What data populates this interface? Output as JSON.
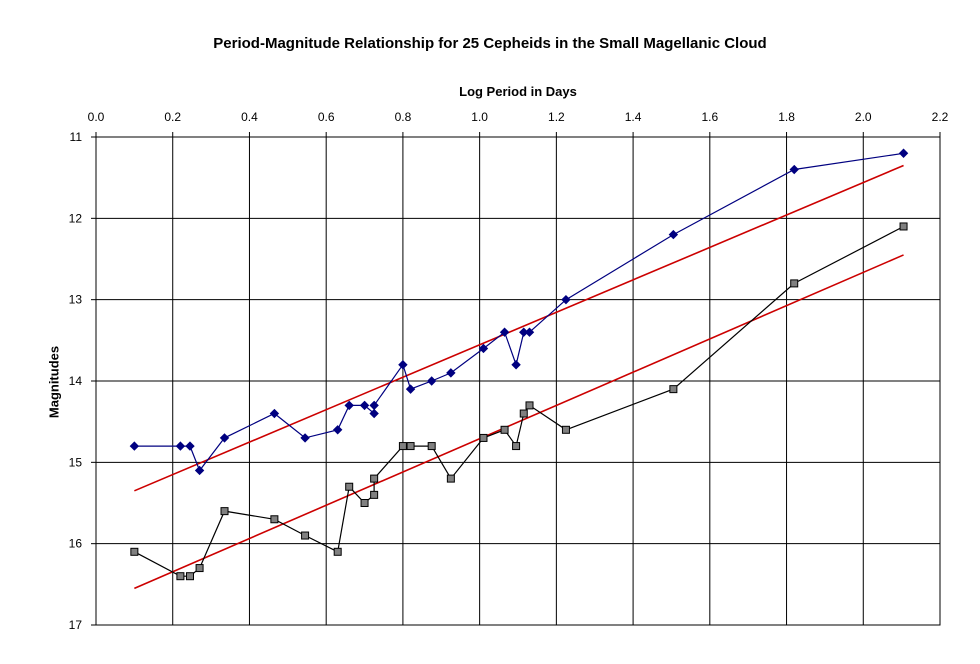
{
  "chart_data": {
    "type": "scatter",
    "title": "Period-Magnitude Relationship for 25 Cepheids in the Small Magellanic Cloud",
    "xlabel": "Log Period in Days",
    "ylabel": "Magnitudes",
    "x_axis_position": "top",
    "y_axis_inverted": true,
    "grid": true,
    "xlim": [
      0.0,
      2.2
    ],
    "ylim": [
      11,
      17
    ],
    "x_ticks": [
      "0.0",
      "0.2",
      "0.4",
      "0.6",
      "0.8",
      "1.0",
      "1.2",
      "1.4",
      "1.6",
      "1.8",
      "2.0",
      "2.2"
    ],
    "y_ticks": [
      "11",
      "12",
      "13",
      "14",
      "15",
      "16",
      "17"
    ],
    "series": [
      {
        "marker": "diamond",
        "color": "#000080",
        "x": [
          0.1,
          0.22,
          0.245,
          0.27,
          0.335,
          0.465,
          0.545,
          0.63,
          0.66,
          0.7,
          0.725,
          0.725,
          0.8,
          0.82,
          0.875,
          0.925,
          1.01,
          1.065,
          1.095,
          1.115,
          1.13,
          1.225,
          1.505,
          1.82,
          2.105
        ],
        "y": [
          14.8,
          14.8,
          14.8,
          15.1,
          14.7,
          14.4,
          14.7,
          14.6,
          14.3,
          14.3,
          14.4,
          14.3,
          13.8,
          14.1,
          14.0,
          13.9,
          13.6,
          13.4,
          13.8,
          13.4,
          13.4,
          13.0,
          12.2,
          11.4,
          11.2
        ]
      },
      {
        "marker": "square",
        "color": "#808080",
        "x": [
          0.1,
          0.22,
          0.245,
          0.27,
          0.335,
          0.465,
          0.545,
          0.63,
          0.66,
          0.7,
          0.725,
          0.725,
          0.8,
          0.82,
          0.875,
          0.925,
          1.01,
          1.065,
          1.095,
          1.115,
          1.13,
          1.225,
          1.505,
          1.82,
          2.105
        ],
        "y": [
          16.1,
          16.4,
          16.4,
          16.3,
          15.6,
          15.7,
          15.9,
          16.1,
          15.3,
          15.5,
          15.4,
          15.2,
          14.8,
          14.8,
          14.8,
          15.2,
          14.7,
          14.6,
          14.8,
          14.4,
          14.3,
          14.6,
          14.1,
          12.8,
          12.1
        ]
      }
    ],
    "trendlines": [
      {
        "color": "#cc0000",
        "x": [
          0.1,
          2.105
        ],
        "y": [
          15.35,
          11.35
        ]
      },
      {
        "color": "#cc0000",
        "x": [
          0.1,
          2.105
        ],
        "y": [
          16.55,
          12.45
        ]
      }
    ]
  }
}
